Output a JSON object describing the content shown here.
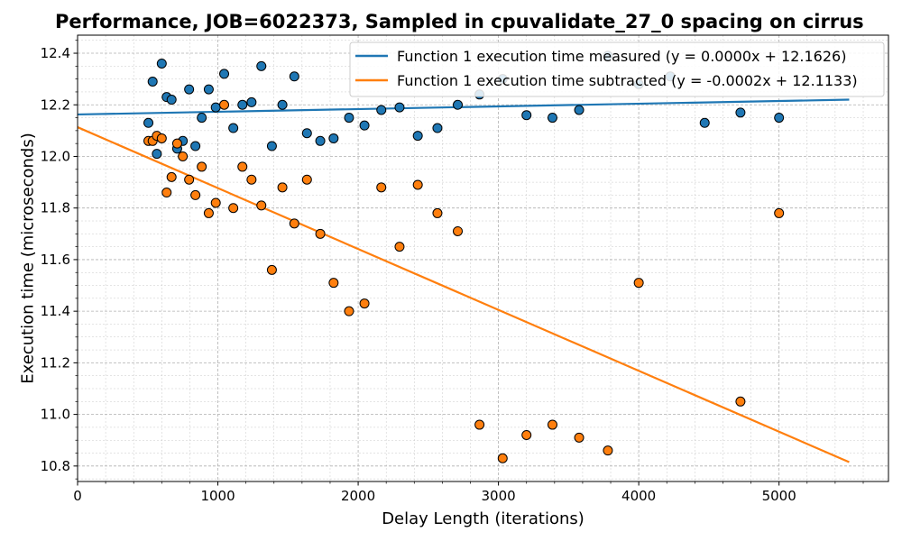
{
  "chart_data": {
    "type": "scatter",
    "title": "Performance, JOB=6022373, Sampled in cpuvalidate_27_0 spacing on cirrus",
    "xlabel": "Delay Length (iterations)",
    "ylabel": "Execution time (microseconds)",
    "xlim": [
      0,
      5780
    ],
    "ylim": [
      10.74,
      12.47
    ],
    "xticks": [
      0,
      1000,
      2000,
      3000,
      4000,
      5000
    ],
    "xtick_labels": [
      "0",
      "1000",
      "2000",
      "3000",
      "4000",
      "5000"
    ],
    "yticks": [
      10.8,
      11.0,
      11.2,
      11.4,
      11.6,
      11.8,
      12.0,
      12.2,
      12.4
    ],
    "ytick_labels": [
      "10.8",
      "11.0",
      "11.2",
      "11.4",
      "11.6",
      "11.8",
      "12.0",
      "12.2",
      "12.4"
    ],
    "grid": true,
    "legend_position": "top-right",
    "series": [
      {
        "name": "Function 1 execution time measured",
        "color": "#1f77b4",
        "points": [
          [
            505,
            12.13
          ],
          [
            535,
            12.29
          ],
          [
            565,
            12.01
          ],
          [
            600,
            12.36
          ],
          [
            635,
            12.23
          ],
          [
            670,
            12.22
          ],
          [
            710,
            12.03
          ],
          [
            750,
            12.06
          ],
          [
            795,
            12.26
          ],
          [
            840,
            12.04
          ],
          [
            885,
            12.15
          ],
          [
            935,
            12.26
          ],
          [
            985,
            12.19
          ],
          [
            1045,
            12.32
          ],
          [
            1110,
            12.11
          ],
          [
            1175,
            12.2
          ],
          [
            1240,
            12.21
          ],
          [
            1310,
            12.35
          ],
          [
            1385,
            12.04
          ],
          [
            1460,
            12.2
          ],
          [
            1545,
            12.31
          ],
          [
            1635,
            12.09
          ],
          [
            1730,
            12.06
          ],
          [
            1825,
            12.07
          ],
          [
            1935,
            12.15
          ],
          [
            2045,
            12.12
          ],
          [
            2165,
            12.18
          ],
          [
            2295,
            12.19
          ],
          [
            2425,
            12.08
          ],
          [
            2565,
            12.11
          ],
          [
            2710,
            12.2
          ],
          [
            2865,
            12.24
          ],
          [
            3030,
            12.3
          ],
          [
            3200,
            12.16
          ],
          [
            3385,
            12.15
          ],
          [
            3575,
            12.18
          ],
          [
            3780,
            12.39
          ],
          [
            4000,
            12.28
          ],
          [
            4225,
            12.31
          ],
          [
            4470,
            12.13
          ],
          [
            4725,
            12.17
          ],
          [
            5000,
            12.15
          ]
        ],
        "trend": {
          "label": "(y = 0.0000x + 12.1626)",
          "x_range": [
            0,
            5500
          ],
          "y_range": [
            12.1626,
            12.22
          ]
        }
      },
      {
        "name": "Function 1 execution time subtracted",
        "color": "#ff7f0e",
        "points": [
          [
            505,
            12.06
          ],
          [
            535,
            12.06
          ],
          [
            565,
            12.08
          ],
          [
            600,
            12.07
          ],
          [
            635,
            11.86
          ],
          [
            670,
            11.92
          ],
          [
            710,
            12.05
          ],
          [
            750,
            12.0
          ],
          [
            795,
            11.91
          ],
          [
            840,
            11.85
          ],
          [
            885,
            11.96
          ],
          [
            935,
            11.78
          ],
          [
            985,
            11.82
          ],
          [
            1045,
            12.2
          ],
          [
            1110,
            11.8
          ],
          [
            1175,
            11.96
          ],
          [
            1240,
            11.91
          ],
          [
            1310,
            11.81
          ],
          [
            1385,
            11.56
          ],
          [
            1460,
            11.88
          ],
          [
            1545,
            11.74
          ],
          [
            1635,
            11.91
          ],
          [
            1730,
            11.7
          ],
          [
            1825,
            11.51
          ],
          [
            1935,
            11.4
          ],
          [
            2045,
            11.43
          ],
          [
            2165,
            11.88
          ],
          [
            2295,
            11.65
          ],
          [
            2425,
            11.89
          ],
          [
            2565,
            11.78
          ],
          [
            2710,
            11.71
          ],
          [
            2865,
            10.96
          ],
          [
            3030,
            10.83
          ],
          [
            3200,
            10.92
          ],
          [
            3385,
            10.96
          ],
          [
            3575,
            10.91
          ],
          [
            3780,
            10.86
          ],
          [
            4000,
            11.51
          ],
          [
            4725,
            11.05
          ],
          [
            5000,
            11.78
          ]
        ],
        "trend": {
          "label": "(y = -0.0002x + 12.1133)",
          "x_range": [
            0,
            5500
          ],
          "y_range": [
            12.1133,
            10.815
          ]
        }
      }
    ]
  }
}
